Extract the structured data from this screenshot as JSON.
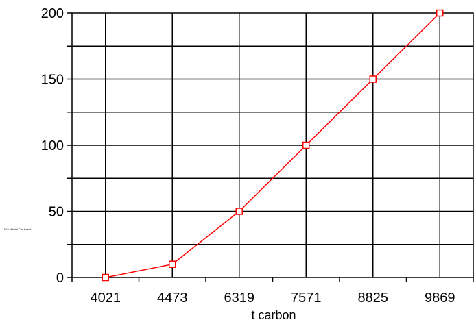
{
  "chart_data": {
    "type": "line",
    "title": "",
    "xlabel": "t carbon",
    "ylabel": "BUI of total C in forest",
    "categories": [
      "4021",
      "4473",
      "6319",
      "7571",
      "8825",
      "9869"
    ],
    "series": [
      {
        "values": [
          0,
          10,
          50,
          100,
          150,
          200
        ]
      }
    ],
    "ylim": [
      0,
      200
    ],
    "yticks": [
      0,
      50,
      100,
      150,
      200
    ],
    "grid": true,
    "line_color": "#ff0000",
    "marker": "open-square",
    "marker_fill": "#ffffff",
    "grid_color": "#000000",
    "legend": "none"
  }
}
